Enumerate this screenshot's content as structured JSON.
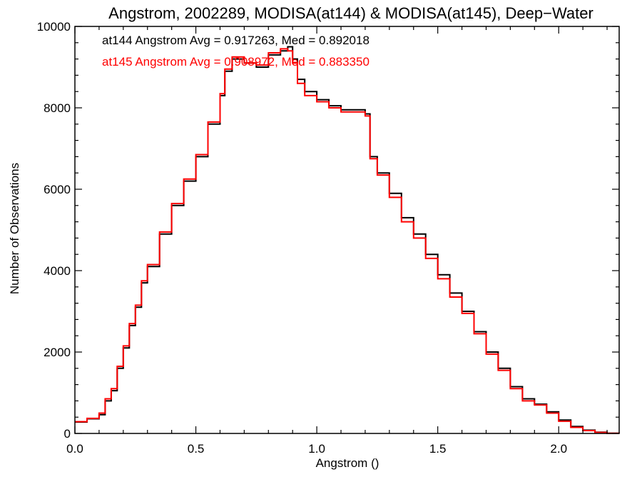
{
  "chart_data": {
    "type": "line",
    "step": true,
    "title": "Angstrom, 2002289, MODISA(at144) & MODISA(at145), Deep−Water",
    "xlabel": "Angstrom ()",
    "ylabel": "Number of Observations",
    "xlim": [
      0.0,
      2.25
    ],
    "ylim": [
      0,
      10000
    ],
    "xticks": [
      0.0,
      0.5,
      1.0,
      1.5,
      2.0
    ],
    "xtick_labels": [
      "0.0",
      "0.5",
      "1.0",
      "1.5",
      "2.0"
    ],
    "yticks": [
      0,
      2000,
      4000,
      6000,
      8000,
      10000
    ],
    "ytick_labels": [
      "0",
      "2000",
      "4000",
      "6000",
      "8000",
      "10000"
    ],
    "grid": false,
    "annotations": [
      {
        "text": "at144 Angstrom Avg = 0.917263, Med = 0.892018",
        "color": "#000000"
      },
      {
        "text": "at145 Angstrom Avg = 0.908972, Med = 0.883350",
        "color": "#ff0000"
      }
    ],
    "x": [
      0.0,
      0.05,
      0.1,
      0.125,
      0.15,
      0.175,
      0.2,
      0.225,
      0.25,
      0.275,
      0.3,
      0.35,
      0.4,
      0.45,
      0.5,
      0.55,
      0.6,
      0.62,
      0.65,
      0.7,
      0.75,
      0.8,
      0.85,
      0.88,
      0.9,
      0.92,
      0.95,
      1.0,
      1.05,
      1.1,
      1.15,
      1.2,
      1.22,
      1.25,
      1.3,
      1.35,
      1.4,
      1.45,
      1.5,
      1.55,
      1.6,
      1.65,
      1.7,
      1.75,
      1.8,
      1.85,
      1.9,
      1.95,
      2.0,
      2.05,
      2.1,
      2.15,
      2.2,
      2.25
    ],
    "series": [
      {
        "color": "#000000",
        "values": [
          280,
          360,
          460,
          800,
          1050,
          1600,
          2100,
          2650,
          3100,
          3700,
          4100,
          4900,
          5600,
          6200,
          6800,
          7600,
          8300,
          8900,
          9200,
          9100,
          9000,
          9300,
          9400,
          9500,
          9200,
          8700,
          8400,
          8200,
          8050,
          7950,
          7950,
          7850,
          6800,
          6400,
          5900,
          5300,
          4900,
          4400,
          3900,
          3450,
          3000,
          2500,
          2000,
          1600,
          1150,
          850,
          720,
          530,
          330,
          170,
          80,
          30,
          5,
          0
        ]
      },
      {
        "color": "#ff0000",
        "values": [
          290,
          370,
          500,
          850,
          1100,
          1650,
          2150,
          2700,
          3150,
          3750,
          4150,
          4950,
          5650,
          6250,
          6850,
          7650,
          8350,
          8950,
          9250,
          9100,
          9050,
          9350,
          9450,
          9400,
          9100,
          8600,
          8300,
          8150,
          8000,
          7900,
          7900,
          7800,
          6750,
          6350,
          5800,
          5200,
          4800,
          4300,
          3800,
          3350,
          2950,
          2450,
          1950,
          1550,
          1100,
          800,
          700,
          500,
          300,
          150,
          70,
          25,
          5,
          0
        ]
      }
    ]
  }
}
